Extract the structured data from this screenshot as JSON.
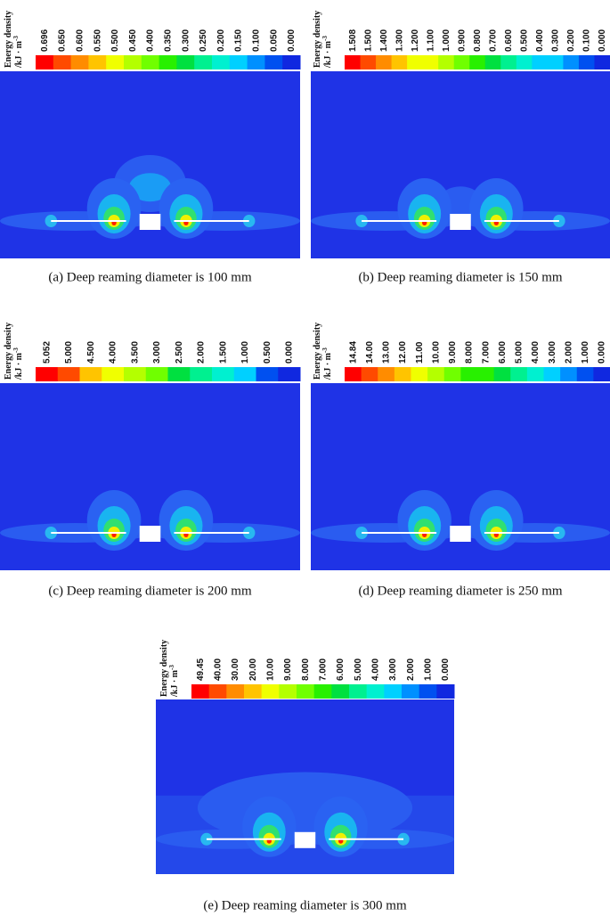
{
  "panels": [
    {
      "legend_title": "Energy density",
      "legend_unit": "/kJ · m",
      "legend_unit_exp": "-3",
      "levels": [
        "0.696",
        "0.650",
        "0.600",
        "0.550",
        "0.500",
        "0.450",
        "0.400",
        "0.350",
        "0.300",
        "0.250",
        "0.200",
        "0.150",
        "0.100",
        "0.050",
        "0.000"
      ],
      "caption": "(a) Deep reaming diameter is 100 mm"
    },
    {
      "legend_title": "Energy density",
      "legend_unit": "/kJ · m",
      "legend_unit_exp": "-3",
      "levels": [
        "1.508",
        "1.500",
        "1.400",
        "1.300",
        "1.200",
        "1.100",
        "1.000",
        "0.900",
        "0.800",
        "0.700",
        "0.600",
        "0.500",
        "0.400",
        "0.300",
        "0.200",
        "0.100",
        "0.000"
      ],
      "caption": "(b) Deep reaming diameter is 150 mm"
    },
    {
      "legend_title": "Energy density",
      "legend_unit": "/kJ · m",
      "legend_unit_exp": "-3",
      "levels": [
        "5.052",
        "5.000",
        "4.500",
        "4.000",
        "3.500",
        "3.000",
        "2.500",
        "2.000",
        "1.500",
        "1.000",
        "0.500",
        "0.000"
      ],
      "caption": "(c) Deep reaming diameter is 200 mm"
    },
    {
      "legend_title": "Energy density",
      "legend_unit": "/kJ · m",
      "legend_unit_exp": "-3",
      "levels": [
        "14.84",
        "14.00",
        "13.00",
        "12.00",
        "11.00",
        "10.00",
        "9.000",
        "8.000",
        "7.000",
        "6.000",
        "5.000",
        "4.000",
        "3.000",
        "2.000",
        "1.000",
        "0.000"
      ],
      "caption": "(d) Deep reaming diameter is 250 mm"
    },
    {
      "legend_title": "Energy density",
      "legend_unit": "/kJ · m",
      "legend_unit_exp": "-3",
      "levels": [
        "49.45",
        "40.00",
        "30.00",
        "20.00",
        "10.00",
        "9.000",
        "8.000",
        "7.000",
        "6.000",
        "5.000",
        "4.000",
        "3.000",
        "2.000",
        "1.000",
        "0.000"
      ],
      "caption": "(e) Deep reaming diameter is 300 mm"
    }
  ]
}
